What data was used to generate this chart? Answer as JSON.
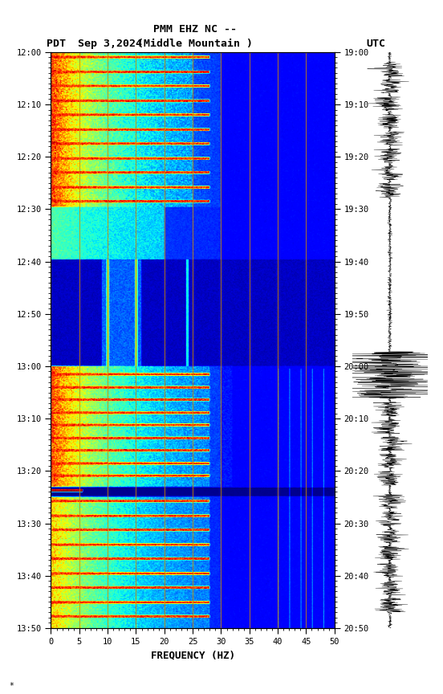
{
  "title_line1": "PMM EHZ NC --",
  "title_line2": "(Middle Mountain )",
  "left_label": "PDT",
  "date_label": "Sep 3,2024",
  "right_label": "UTC",
  "xlabel": "FREQUENCY (HZ)",
  "freq_min": 0,
  "freq_max": 50,
  "pdt_ticks": [
    "12:00",
    "12:10",
    "12:20",
    "12:30",
    "12:40",
    "12:50",
    "13:00",
    "13:10",
    "13:20",
    "13:30",
    "13:40",
    "13:50"
  ],
  "utc_ticks": [
    "19:00",
    "19:10",
    "19:20",
    "19:30",
    "19:40",
    "19:50",
    "20:00",
    "20:10",
    "20:20",
    "20:30",
    "20:40",
    "20:50"
  ],
  "background_color": "#ffffff",
  "colormap": "jet",
  "fig_width": 5.52,
  "fig_height": 8.64,
  "dpi": 100,
  "freq_major_ticks": [
    0,
    5,
    10,
    15,
    20,
    25,
    30,
    35,
    40,
    45,
    50
  ],
  "vline_freqs": [
    5,
    10,
    15,
    20,
    25,
    30,
    35,
    40,
    45
  ],
  "vline_color": "#CC8800"
}
